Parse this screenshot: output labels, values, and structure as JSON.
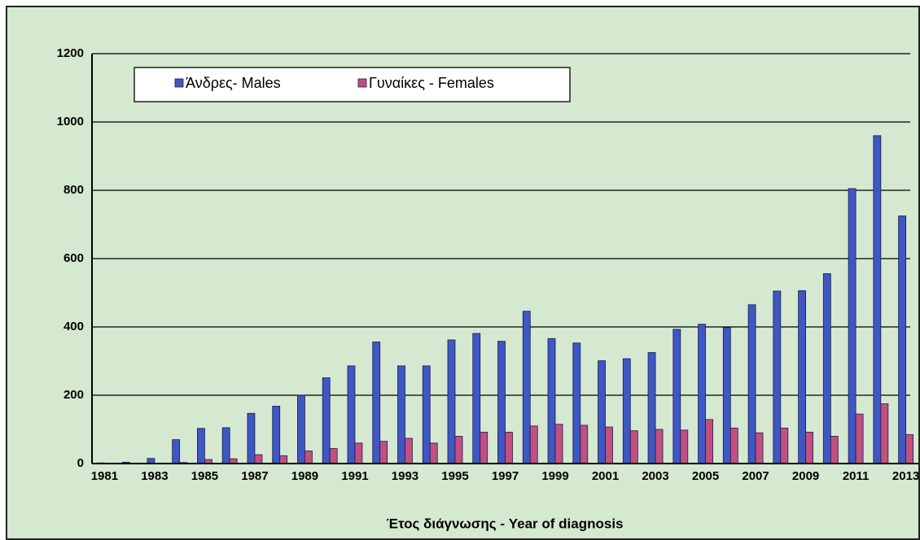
{
  "chart_data": {
    "type": "bar",
    "x_label": "Έτος διάγνωσης - Year of diagnosis",
    "categories": [
      "1981",
      null,
      "1983",
      null,
      "1985",
      null,
      "1987",
      null,
      "1989",
      null,
      "1991",
      null,
      "1993",
      null,
      "1995",
      null,
      "1997",
      null,
      "1999",
      null,
      "2001",
      null,
      "2003",
      null,
      "2005",
      null,
      "2007",
      null,
      "2009",
      null,
      "2011",
      null,
      "2013"
    ],
    "series": [
      {
        "name": "Άνδρες- Males",
        "color": "#3f57c0",
        "values": [
          2,
          4,
          15,
          70,
          103,
          105,
          147,
          168,
          200,
          251,
          286,
          356,
          286,
          286,
          362,
          381,
          358,
          446,
          366,
          353,
          301,
          307,
          325,
          393,
          408,
          398,
          465,
          505,
          506,
          556,
          805,
          960,
          725
        ]
      },
      {
        "name": "Γυναίκες - Females",
        "color": "#c2507e",
        "values": [
          0,
          1,
          1,
          3,
          12,
          14,
          26,
          23,
          37,
          44,
          60,
          65,
          74,
          60,
          80,
          92,
          92,
          110,
          115,
          112,
          107,
          96,
          100,
          98,
          129,
          104,
          90,
          104,
          92,
          80,
          145,
          175,
          85
        ]
      }
    ],
    "ylim": [
      0,
      1200
    ],
    "yticks": [
      0,
      200,
      400,
      600,
      800,
      1000,
      1200
    ],
    "grid": true,
    "legend": "top-left"
  }
}
